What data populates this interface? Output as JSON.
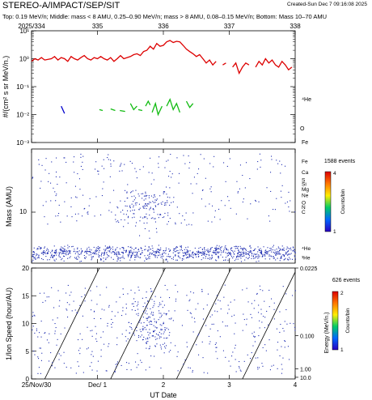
{
  "header": {
    "title": "STEREO-A/IMPACT/SEP/SIT",
    "created": "Created-Sun Dec  7 09:16:08 2025",
    "subtitle": "Top: 0.19 MeV/n; Middle: mass < 8 AMU, 0.25–0.90 MeV/n; mass > 8 AMU, 0.08–0.15 MeV/n; Bottom: Mass 10–70 AMU"
  },
  "colors": {
    "he": "#dd0000",
    "o": "#11bb11",
    "fe": "#0000cc",
    "dots": "#1c2bb0"
  },
  "chart_data": [
    {
      "type": "line",
      "panel": "top",
      "ylabel": "#/(cm² s sr MeV/n.)",
      "ylim_exponent": [
        -3,
        1
      ],
      "yscale": "log",
      "x_top_ticks": [
        "2025/334",
        "335",
        "336",
        "337",
        "338"
      ],
      "y_ticks": [
        "10⁻³",
        "10⁻²",
        "10⁻¹",
        "10⁰",
        "10¹"
      ],
      "series": [
        {
          "name": "⁴He",
          "x": [
            0.0,
            0.05,
            0.1,
            0.15,
            0.2,
            0.3,
            0.35,
            0.4,
            0.45,
            0.5,
            0.55,
            0.6,
            0.65,
            0.7,
            0.75,
            0.8,
            0.85,
            0.9,
            0.95,
            1.0,
            1.05,
            1.1,
            1.15,
            1.2,
            1.25,
            1.3,
            1.35,
            1.4,
            1.45,
            1.5,
            1.55,
            1.6,
            1.65,
            1.7,
            1.75,
            1.8,
            1.85,
            1.9,
            1.95,
            2.0,
            2.05,
            2.1,
            2.15,
            2.2,
            2.25,
            2.3,
            2.35,
            2.4,
            2.45,
            2.5,
            2.55,
            2.6,
            2.65,
            2.7,
            2.75,
            2.8,
            2.85,
            2.9,
            2.95,
            3.0,
            3.05,
            3.1,
            3.15,
            3.2,
            3.25,
            3.3,
            3.35,
            3.4,
            3.45,
            3.5,
            3.55,
            3.6,
            3.65,
            3.7,
            3.75,
            3.8,
            3.85,
            3.9,
            3.95
          ],
          "y": [
            0.8,
            1.0,
            0.9,
            1.1,
            0.9,
            1.0,
            1.2,
            0.9,
            1.1,
            1.0,
            0.8,
            1.2,
            1.0,
            0.9,
            1.1,
            1.3,
            1.0,
            0.9,
            1.1,
            1.0,
            1.2,
            1.0,
            0.9,
            1.1,
            0.8,
            1.0,
            1.3,
            1.0,
            1.1,
            1.2,
            1.4,
            1.5,
            1.3,
            1.8,
            2.0,
            2.8,
            2.2,
            3.5,
            2.8,
            3.0,
            4.0,
            4.5,
            3.8,
            4.2,
            4.0,
            3.0,
            2.2,
            1.8,
            1.5,
            1.2,
            1.4,
            1.0,
            0.7,
            0.9,
            0.6,
            0.8,
            null,
            0.6,
            0.7,
            null,
            0.5,
            0.7,
            0.3,
            0.5,
            0.7,
            0.6,
            null,
            0.5,
            0.8,
            0.6,
            1.0,
            0.7,
            0.9,
            0.6,
            0.5,
            0.8,
            0.6,
            0.4,
            0.5
          ]
        },
        {
          "name": "O",
          "segments": [
            {
              "x": [
                1.03,
                1.08
              ],
              "y": [
                0.015,
                0.014
              ]
            },
            {
              "x": [
                1.2,
                1.27
              ],
              "y": [
                0.016,
                0.014
              ]
            },
            {
              "x": [
                1.34,
                1.42
              ],
              "y": [
                0.014,
                0.013
              ]
            },
            {
              "x": [
                1.5,
                1.55,
                1.6
              ],
              "y": [
                0.025,
                0.015,
                0.02
              ]
            },
            {
              "x": [
                1.62,
                1.68
              ],
              "y": [
                0.015,
                0.014
              ]
            },
            {
              "x": [
                1.73,
                1.77,
                1.8
              ],
              "y": [
                0.02,
                0.03,
                0.022
              ]
            },
            {
              "x": [
                1.83,
                1.88,
                1.92,
                1.98
              ],
              "y": [
                0.012,
                0.025,
                0.01,
                0.02
              ]
            },
            {
              "x": [
                2.05,
                2.1,
                2.15,
                2.2,
                2.25
              ],
              "y": [
                0.02,
                0.035,
                0.015,
                0.025,
                0.012
              ]
            },
            {
              "x": [
                2.35,
                2.4,
                2.45
              ],
              "y": [
                0.03,
                0.018,
                0.025
              ]
            }
          ]
        },
        {
          "name": "Fe",
          "segments": [
            {
              "x": [
                0.45,
                0.5
              ],
              "y": [
                0.02,
                0.011
              ]
            }
          ]
        }
      ]
    },
    {
      "type": "scatter",
      "panel": "middle",
      "ylabel": "Mass (AMU)",
      "yscale": "log",
      "ylim": [
        2.5,
        80
      ],
      "y_tick_labels": [
        "10"
      ],
      "element_labels": [
        "Fe",
        "Ca",
        "Si",
        "S",
        "Mg",
        "Ne",
        "O",
        "N",
        "C",
        "⁴He",
        "³He"
      ],
      "colorbar": {
        "events": "1588 events",
        "label": "Counts/bin",
        "min_label": "1",
        "max_label": "4"
      }
    },
    {
      "type": "scatter",
      "panel": "bottom",
      "ylabel": "1/Ion Speed (hour/AU)",
      "xlabel": "UT Date",
      "ylim": [
        0,
        20
      ],
      "y_ticks": [
        "0",
        "5",
        "10",
        "15",
        "20"
      ],
      "x_ticks": [
        "25/Nov/30",
        "Dec/ 1",
        "2",
        "3",
        "4"
      ],
      "right_axis_label": "Energy (MeV/n.)",
      "right_axis_ticks": [
        "0.0225",
        "0.100",
        "1.00",
        "10.0"
      ],
      "colorbar": {
        "events": "626 events",
        "label": "Counts/bin",
        "min_label": "1",
        "max_label": "2"
      }
    }
  ]
}
